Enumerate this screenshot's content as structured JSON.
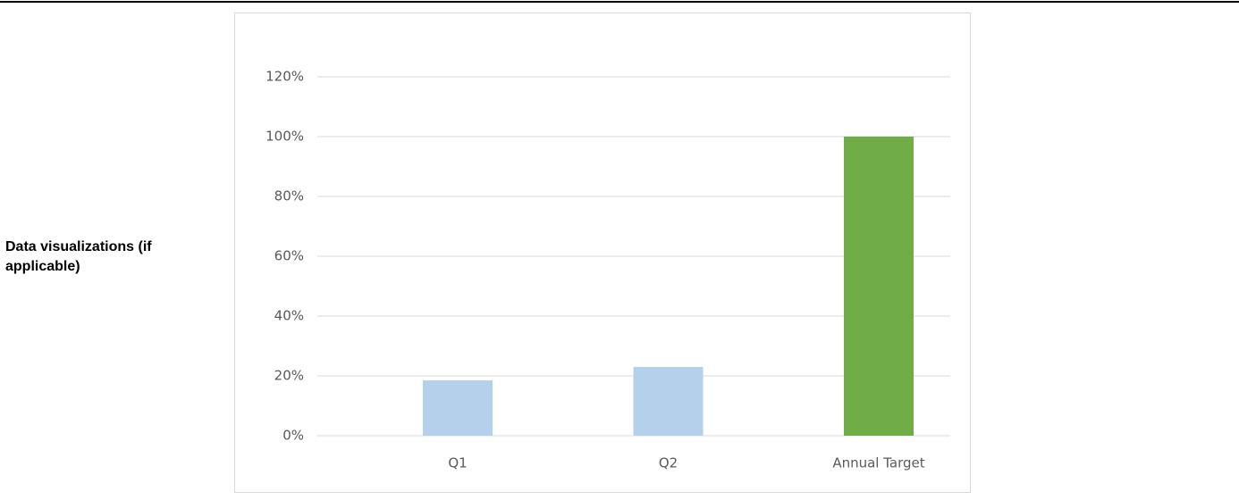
{
  "row_label": "Data visualizations (if applicable)",
  "chart_data": {
    "type": "bar",
    "categories": [
      "Q1",
      "Q2",
      "Annual Target"
    ],
    "values": [
      18.5,
      23,
      100
    ],
    "colors": [
      "#b4d0eb",
      "#b4d0eb",
      "#70ad47"
    ],
    "ylim": [
      0,
      120
    ],
    "yticks": [
      {
        "value": 0,
        "label": "0%"
      },
      {
        "value": 20,
        "label": "20%"
      },
      {
        "value": 40,
        "label": "40%"
      },
      {
        "value": 60,
        "label": "60%"
      },
      {
        "value": 80,
        "label": "80%"
      },
      {
        "value": 100,
        "label": "100%"
      },
      {
        "value": 120,
        "label": "120%"
      }
    ],
    "grid": true
  }
}
